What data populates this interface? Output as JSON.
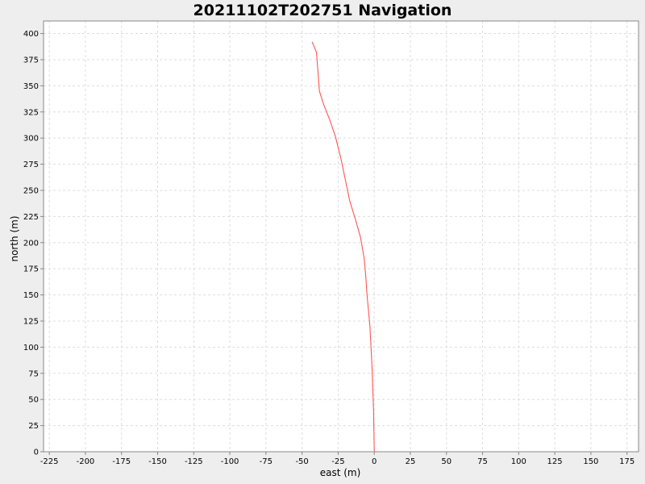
{
  "colors": {
    "background": "#eeeeee",
    "plot_background": "#ffffff",
    "grid": "#dddddd",
    "axis": "#888888",
    "series": "#ff5555"
  },
  "chart_data": {
    "type": "line",
    "title": "20211102T202751 Navigation",
    "xlabel": "east (m)",
    "ylabel": "north (m)",
    "xlim": [
      -229,
      183
    ],
    "ylim": [
      0,
      412
    ],
    "grid": true,
    "legend": "none",
    "x_ticks": [
      -225,
      -200,
      -175,
      -150,
      -125,
      -100,
      -75,
      -50,
      -25,
      0,
      25,
      50,
      75,
      100,
      125,
      150,
      175
    ],
    "y_ticks": [
      0,
      25,
      50,
      75,
      100,
      125,
      150,
      175,
      200,
      225,
      250,
      275,
      300,
      325,
      350,
      375,
      400
    ],
    "series": [
      {
        "x": [
          0,
          -0.5,
          -1.5,
          -3,
          -5,
          -6,
          -7,
          -9.5,
          -13,
          -17,
          -20,
          -23,
          -27,
          -31,
          -35,
          -38,
          -40,
          -43
        ],
        "y": [
          0,
          40,
          80,
          120,
          150,
          170,
          185,
          205,
          222,
          240,
          260,
          280,
          302,
          318,
          332,
          345,
          382,
          392
        ]
      }
    ]
  }
}
